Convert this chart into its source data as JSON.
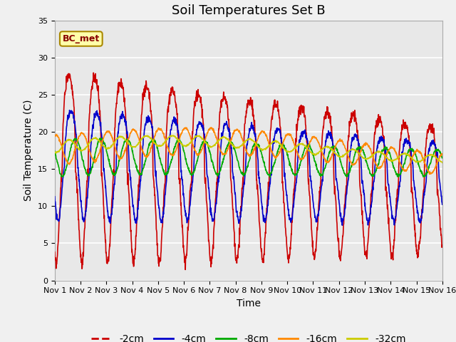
{
  "title": "Soil Temperatures Set B",
  "xlabel": "Time",
  "ylabel": "Soil Temperature (C)",
  "ylim": [
    0,
    35
  ],
  "xlim": [
    0,
    15
  ],
  "xtick_labels": [
    "Nov 1",
    "Nov 2",
    "Nov 3",
    "Nov 4",
    "Nov 5",
    "Nov 6",
    "Nov 7",
    "Nov 8",
    "Nov 9",
    "Nov 10",
    "Nov 11",
    "Nov 12",
    "Nov 13",
    "Nov 14",
    "Nov 15",
    "Nov 16"
  ],
  "series_colors": [
    "#cc0000",
    "#0000cc",
    "#00aa00",
    "#ff8800",
    "#cccc00"
  ],
  "series_labels": [
    "-2cm",
    "-4cm",
    "-8cm",
    "-16cm",
    "-32cm"
  ],
  "annotation_text": "BC_met",
  "background_color": "#e8e8e8",
  "figure_color": "#f0f0f0",
  "grid_color": "#ffffff",
  "title_fontsize": 13,
  "axis_label_fontsize": 10,
  "tick_fontsize": 8,
  "legend_fontsize": 10
}
